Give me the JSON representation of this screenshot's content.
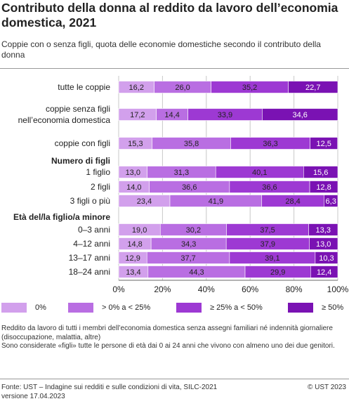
{
  "title": "Contributo della donna al reddito da lavoro dell’economia domestica, 2021",
  "subtitle": "Coppie con o senza figli, quota delle economie domestiche secondo il contributo della donna",
  "colors": [
    "#d2a0ec",
    "#b96ee2",
    "#9d39d3",
    "#7a12b3"
  ],
  "chart_data": {
    "type": "bar",
    "orientation": "horizontal",
    "stacked": true,
    "xlim": [
      0,
      100
    ],
    "x_ticks": [
      "0%",
      "20%",
      "40%",
      "60%",
      "80%",
      "100%"
    ],
    "series": [
      {
        "name": "0%"
      },
      {
        "name": "> 0% a < 25%"
      },
      {
        "name": "≥ 25% a < 50%"
      },
      {
        "name": "≥ 50%"
      }
    ],
    "rows": [
      {
        "kind": "bar",
        "label": [
          "tutte le coppie"
        ],
        "values": [
          16.2,
          26.0,
          35.2,
          22.7
        ],
        "labels": [
          "16,2",
          "26,0",
          "35,2",
          "22,7"
        ]
      },
      {
        "kind": "bar",
        "label": [
          "coppie senza figli",
          "nell’economia domestica"
        ],
        "values": [
          17.2,
          14.4,
          33.9,
          34.6
        ],
        "labels": [
          "17,2",
          "14,4",
          "33,9",
          "34,6"
        ]
      },
      {
        "kind": "bar",
        "label": [
          "coppie con figli"
        ],
        "values": [
          15.3,
          35.8,
          36.3,
          12.5
        ],
        "labels": [
          "15,3",
          "35,8",
          "36,3",
          "12,5"
        ]
      },
      {
        "kind": "header",
        "label": [
          "Numero di figli"
        ]
      },
      {
        "kind": "bar",
        "label": [
          "1 figlio"
        ],
        "values": [
          13.0,
          31.3,
          40.1,
          15.6
        ],
        "labels": [
          "13,0",
          "31,3",
          "40,1",
          "15,6"
        ]
      },
      {
        "kind": "bar",
        "label": [
          "2 figli"
        ],
        "values": [
          14.0,
          36.6,
          36.6,
          12.8
        ],
        "labels": [
          "14,0",
          "36,6",
          "36,6",
          "12,8"
        ]
      },
      {
        "kind": "bar",
        "label": [
          "3 figli o più"
        ],
        "values": [
          23.4,
          41.9,
          28.4,
          6.3
        ],
        "labels": [
          "23,4",
          "41,9",
          "28,4",
          "6,3"
        ]
      },
      {
        "kind": "header",
        "label": [
          "Età del/la figlio/a minore"
        ]
      },
      {
        "kind": "bar",
        "label": [
          "0–3 anni"
        ],
        "values": [
          19.0,
          30.2,
          37.5,
          13.3
        ],
        "labels": [
          "19,0",
          "30,2",
          "37,5",
          "13,3"
        ]
      },
      {
        "kind": "bar",
        "label": [
          "4–12 anni"
        ],
        "values": [
          14.8,
          34.3,
          37.9,
          13.0
        ],
        "labels": [
          "14,8",
          "34,3",
          "37,9",
          "13,0"
        ]
      },
      {
        "kind": "bar",
        "label": [
          "13–17 anni"
        ],
        "values": [
          12.9,
          37.7,
          39.1,
          10.3
        ],
        "labels": [
          "12,9",
          "37,7",
          "39,1",
          "10,3"
        ]
      },
      {
        "kind": "bar",
        "label": [
          "18–24 anni"
        ],
        "values": [
          13.4,
          44.3,
          29.9,
          12.4
        ],
        "labels": [
          "13,4",
          "44,3",
          "29,9",
          "12,4"
        ]
      }
    ]
  },
  "notes": [
    "Reddito da lavoro di tutti i membri dell’economia domestica senza assegni familiari né indennità giornaliere (disoccupazione, malattia, altre)",
    "Sono considerate «figli» tutte le persone di età dai 0 ai 24 anni che vivono con almeno uno dei due genitori."
  ],
  "source": "Fonte: UST – Indagine sui redditi e sulle condizioni di vita, SILC-2021 versione 17.04.2023",
  "copyright": "© UST 2023"
}
